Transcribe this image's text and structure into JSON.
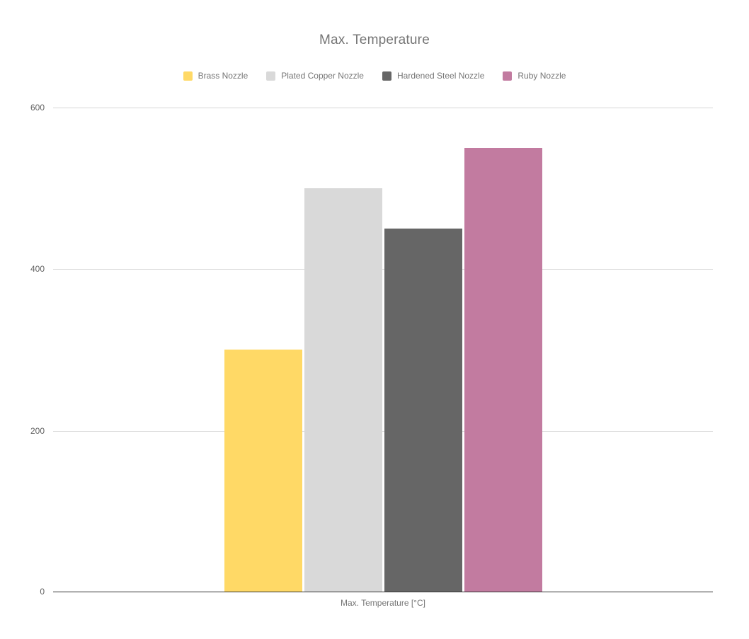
{
  "page": {
    "background_color": "#ffffff"
  },
  "chart_data": {
    "type": "bar",
    "title": "Max. Temperature",
    "categories": [
      "Brass Nozzle",
      "Plated Copper Nozzle",
      "Hardened Steel Nozzle",
      "Ruby Nozzle"
    ],
    "values": [
      300,
      500,
      450,
      550
    ],
    "series_colors": [
      "#FFD966",
      "#D9D9D9",
      "#666666",
      "#C27BA0"
    ],
    "xlabel": "Max. Temperature [°C]",
    "ylabel": "",
    "ylim": [
      0,
      600
    ],
    "yticks": [
      0,
      200,
      400,
      600
    ],
    "legend_position": "top",
    "grid": true,
    "title_color": "#757575",
    "tick_label_color": "#616161",
    "legend_text_color": "#757575",
    "gridline_color": "#d6d6d6",
    "axis_line_color": "#333333"
  }
}
